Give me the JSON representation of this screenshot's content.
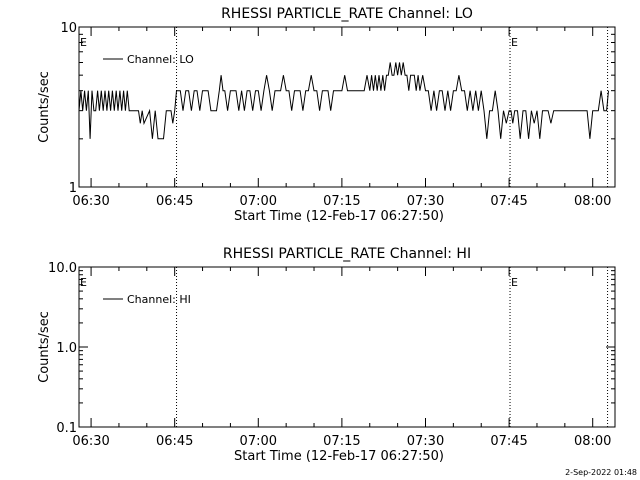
{
  "footer": {
    "timestamp": "2-Sep-2022 01:48"
  },
  "chart_data": [
    {
      "type": "line",
      "title": "RHESSI PARTICLE_RATE Channel: LO",
      "xlabel": "Start Time (12-Feb-17 06:27:50)",
      "ylabel": "Counts/sec",
      "yscale": "log",
      "ylim": [
        1,
        10
      ],
      "yticks": [
        {
          "value": 1,
          "label": "1"
        },
        {
          "value": 10,
          "label": "10"
        }
      ],
      "xlim": [
        "06:27:50",
        "08:04:00"
      ],
      "xticks": [
        "06:30",
        "06:45",
        "07:00",
        "07:15",
        "07:30",
        "07:45",
        "08:00"
      ],
      "legend": {
        "placement": "top-left",
        "label": "Channel: LO"
      },
      "markers": [
        {
          "time": "06:45:20",
          "label": ""
        },
        {
          "time": "07:45:10",
          "label": "E"
        },
        {
          "time": "08:02:40",
          "label": ""
        }
      ],
      "edge_label": "E",
      "series": [
        {
          "name": "Channel: LO",
          "points": [
            [
              "06:27:50",
              3
            ],
            [
              "06:28:10",
              4
            ],
            [
              "06:28:30",
              3
            ],
            [
              "06:28:50",
              4
            ],
            [
              "06:29:10",
              3
            ],
            [
              "06:29:30",
              4
            ],
            [
              "06:29:50",
              2
            ],
            [
              "06:30:10",
              4
            ],
            [
              "06:30:30",
              3
            ],
            [
              "06:30:50",
              3
            ],
            [
              "06:31:10",
              4
            ],
            [
              "06:31:30",
              3
            ],
            [
              "06:31:50",
              4
            ],
            [
              "06:32:10",
              3
            ],
            [
              "06:32:30",
              4
            ],
            [
              "06:32:50",
              3
            ],
            [
              "06:33:10",
              4
            ],
            [
              "06:33:30",
              3
            ],
            [
              "06:33:50",
              4
            ],
            [
              "06:34:10",
              3
            ],
            [
              "06:34:30",
              4
            ],
            [
              "06:34:50",
              3
            ],
            [
              "06:35:10",
              4
            ],
            [
              "06:35:30",
              3
            ],
            [
              "06:35:50",
              4
            ],
            [
              "06:36:10",
              3
            ],
            [
              "06:36:30",
              4
            ],
            [
              "06:36:50",
              3
            ],
            [
              "06:37:30",
              3
            ],
            [
              "06:38:30",
              3
            ],
            [
              "06:38:50",
              2.5
            ],
            [
              "06:39:10",
              3
            ],
            [
              "06:39:30",
              2.5
            ],
            [
              "06:40:30",
              3
            ],
            [
              "06:41:00",
              2
            ],
            [
              "06:41:30",
              3
            ],
            [
              "06:42:00",
              2
            ],
            [
              "06:43:00",
              2
            ],
            [
              "06:43:30",
              3
            ],
            [
              "06:44:00",
              3
            ],
            [
              "06:44:20",
              3
            ],
            [
              "06:44:40",
              2.5
            ],
            [
              "06:45:00",
              3
            ],
            [
              "06:45:20",
              4
            ],
            [
              "06:46:00",
              4
            ],
            [
              "06:46:30",
              3
            ],
            [
              "06:47:00",
              4
            ],
            [
              "06:47:30",
              4
            ],
            [
              "06:48:00",
              3
            ],
            [
              "06:48:30",
              4
            ],
            [
              "06:49:00",
              4
            ],
            [
              "06:49:30",
              3
            ],
            [
              "06:50:00",
              4
            ],
            [
              "06:50:30",
              4
            ],
            [
              "06:51:00",
              4
            ],
            [
              "06:51:30",
              3
            ],
            [
              "06:52:30",
              3
            ],
            [
              "06:53:00",
              4
            ],
            [
              "06:53:20",
              5
            ],
            [
              "06:53:40",
              4
            ],
            [
              "06:54:00",
              4
            ],
            [
              "06:54:30",
              3
            ],
            [
              "06:55:00",
              4
            ],
            [
              "06:56:00",
              4
            ],
            [
              "06:56:30",
              3
            ],
            [
              "06:57:00",
              4
            ],
            [
              "06:57:30",
              3
            ],
            [
              "06:58:00",
              4
            ],
            [
              "06:58:30",
              4
            ],
            [
              "06:59:00",
              3
            ],
            [
              "06:59:30",
              4
            ],
            [
              "07:00:00",
              4
            ],
            [
              "07:00:30",
              3
            ],
            [
              "07:01:00",
              4
            ],
            [
              "07:01:30",
              5
            ],
            [
              "07:02:00",
              4
            ],
            [
              "07:02:30",
              3
            ],
            [
              "07:03:00",
              4
            ],
            [
              "07:04:00",
              4
            ],
            [
              "07:04:30",
              5
            ],
            [
              "07:05:00",
              4
            ],
            [
              "07:05:30",
              4
            ],
            [
              "07:06:00",
              3
            ],
            [
              "07:06:30",
              4
            ],
            [
              "07:07:00",
              4
            ],
            [
              "07:07:30",
              4
            ],
            [
              "07:08:00",
              3
            ],
            [
              "07:08:30",
              4
            ],
            [
              "07:09:00",
              4
            ],
            [
              "07:09:30",
              5
            ],
            [
              "07:10:00",
              4
            ],
            [
              "07:10:30",
              4
            ],
            [
              "07:11:00",
              3
            ],
            [
              "07:11:30",
              4
            ],
            [
              "07:12:30",
              4
            ],
            [
              "07:13:00",
              3
            ],
            [
              "07:13:30",
              4
            ],
            [
              "07:14:00",
              4
            ],
            [
              "07:15:00",
              4
            ],
            [
              "07:15:30",
              5
            ],
            [
              "07:16:00",
              4
            ],
            [
              "07:17:00",
              4
            ],
            [
              "07:18:00",
              4
            ],
            [
              "07:19:00",
              4
            ],
            [
              "07:19:30",
              5
            ],
            [
              "07:20:00",
              4
            ],
            [
              "07:20:20",
              5
            ],
            [
              "07:20:40",
              4
            ],
            [
              "07:21:00",
              5
            ],
            [
              "07:21:20",
              4
            ],
            [
              "07:21:40",
              5
            ],
            [
              "07:22:00",
              4
            ],
            [
              "07:22:20",
              5
            ],
            [
              "07:22:40",
              4
            ],
            [
              "07:23:00",
              5
            ],
            [
              "07:23:20",
              5
            ],
            [
              "07:23:40",
              6
            ],
            [
              "07:24:00",
              5
            ],
            [
              "07:24:20",
              5
            ],
            [
              "07:24:40",
              6
            ],
            [
              "07:25:00",
              5
            ],
            [
              "07:25:20",
              6
            ],
            [
              "07:25:40",
              5
            ],
            [
              "07:26:00",
              6
            ],
            [
              "07:26:20",
              5
            ],
            [
              "07:26:40",
              5
            ],
            [
              "07:27:00",
              4
            ],
            [
              "07:27:20",
              5
            ],
            [
              "07:27:40",
              5
            ],
            [
              "07:28:00",
              5
            ],
            [
              "07:28:20",
              4
            ],
            [
              "07:28:40",
              5
            ],
            [
              "07:29:00",
              4
            ],
            [
              "07:29:30",
              5
            ],
            [
              "07:30:00",
              4
            ],
            [
              "07:30:30",
              4
            ],
            [
              "07:31:00",
              3
            ],
            [
              "07:31:30",
              4
            ],
            [
              "07:32:00",
              3
            ],
            [
              "07:32:30",
              4
            ],
            [
              "07:33:00",
              4
            ],
            [
              "07:33:30",
              3
            ],
            [
              "07:34:00",
              4
            ],
            [
              "07:34:30",
              3
            ],
            [
              "07:35:00",
              4
            ],
            [
              "07:35:30",
              4
            ],
            [
              "07:36:00",
              5
            ],
            [
              "07:36:30",
              4
            ],
            [
              "07:37:00",
              4
            ],
            [
              "07:37:30",
              3
            ],
            [
              "07:38:00",
              4
            ],
            [
              "07:38:30",
              3
            ],
            [
              "07:39:00",
              4
            ],
            [
              "07:39:30",
              3
            ],
            [
              "07:40:00",
              4
            ],
            [
              "07:40:30",
              3
            ],
            [
              "07:41:00",
              2
            ],
            [
              "07:41:30",
              3
            ],
            [
              "07:42:00",
              3
            ],
            [
              "07:42:30",
              4
            ],
            [
              "07:43:00",
              3
            ],
            [
              "07:43:30",
              2
            ],
            [
              "07:44:00",
              3
            ],
            [
              "07:44:30",
              2.5
            ],
            [
              "07:45:00",
              3
            ],
            [
              "07:45:20",
              3
            ],
            [
              "07:45:40",
              2.5
            ],
            [
              "07:46:00",
              3
            ],
            [
              "07:46:30",
              3
            ],
            [
              "07:47:00",
              2
            ],
            [
              "07:47:30",
              3
            ],
            [
              "07:48:00",
              3
            ],
            [
              "07:48:30",
              2
            ],
            [
              "07:49:00",
              3
            ],
            [
              "07:49:30",
              2.5
            ],
            [
              "07:50:00",
              3
            ],
            [
              "07:50:30",
              2
            ],
            [
              "07:51:00",
              3
            ],
            [
              "07:52:00",
              3
            ],
            [
              "07:52:30",
              2.5
            ],
            [
              "07:53:00",
              3
            ],
            [
              "07:54:00",
              3
            ],
            [
              "07:55:00",
              3
            ],
            [
              "07:56:00",
              3
            ],
            [
              "07:57:00",
              3
            ],
            [
              "07:58:00",
              3
            ],
            [
              "07:59:00",
              3
            ],
            [
              "07:59:30",
              2
            ],
            [
              "08:00:00",
              3
            ],
            [
              "08:01:00",
              3
            ],
            [
              "08:01:30",
              4
            ],
            [
              "08:02:00",
              3
            ],
            [
              "08:02:30",
              3
            ],
            [
              "08:02:50",
              4
            ]
          ]
        }
      ]
    },
    {
      "type": "line",
      "title": "RHESSI PARTICLE_RATE Channel: HI",
      "xlabel": "Start Time (12-Feb-17 06:27:50)",
      "ylabel": "Counts/sec",
      "yscale": "log",
      "ylim": [
        0.1,
        10
      ],
      "yticks": [
        {
          "value": 0.1,
          "label": "0.1"
        },
        {
          "value": 1,
          "label": "1.0"
        },
        {
          "value": 10,
          "label": "10.0"
        }
      ],
      "xlim": [
        "06:27:50",
        "08:04:00"
      ],
      "xticks": [
        "06:30",
        "06:45",
        "07:00",
        "07:15",
        "07:30",
        "07:45",
        "08:00"
      ],
      "legend": {
        "placement": "top-left",
        "label": "Channel: HI"
      },
      "markers": [
        {
          "time": "06:45:20",
          "label": ""
        },
        {
          "time": "07:45:10",
          "label": "E"
        },
        {
          "time": "08:02:40",
          "label": ""
        }
      ],
      "edge_label": "E",
      "series": [
        {
          "name": "Channel: HI",
          "points": []
        }
      ]
    }
  ]
}
